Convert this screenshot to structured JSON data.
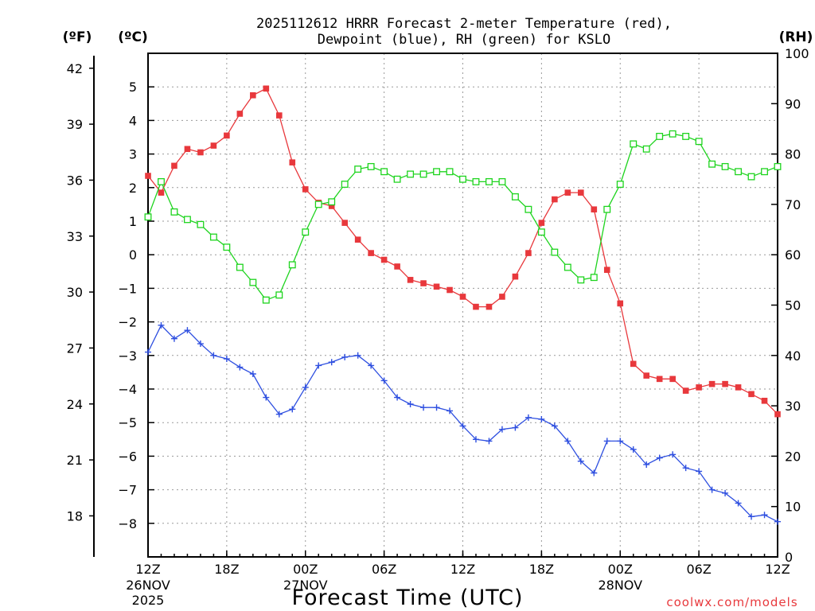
{
  "chart_data": {
    "type": "line",
    "title_line1": "2025112612 HRRR Forecast 2-meter Temperature (red),",
    "title_line2": "Dewpoint (blue), RH (green) for KSLO",
    "xlabel": "Forecast Time (UTC)",
    "unit_f": "(ºF)",
    "unit_c": "(ºC)",
    "unit_rh": "(RH)",
    "watermark": "coolwx.com/models",
    "colors": {
      "temperature": "#e8383c",
      "dewpoint": "#2e4fe0",
      "rh": "#1ed41e"
    },
    "x": {
      "min": 0,
      "max": 48,
      "hours": [
        0,
        1,
        2,
        3,
        4,
        5,
        6,
        7,
        8,
        9,
        10,
        11,
        12,
        13,
        14,
        15,
        16,
        17,
        18,
        19,
        20,
        21,
        22,
        23,
        24,
        25,
        26,
        27,
        28,
        29,
        30,
        31,
        32,
        33,
        34,
        35,
        36,
        37,
        38,
        39,
        40,
        41,
        42,
        43,
        44,
        45,
        46,
        47,
        48
      ]
    },
    "x_ticks": [
      {
        "hour": 0,
        "label": "12Z",
        "date": "26NOV",
        "year": "2025"
      },
      {
        "hour": 6,
        "label": "18Z",
        "date": "",
        "year": ""
      },
      {
        "hour": 12,
        "label": "00Z",
        "date": "27NOV",
        "year": ""
      },
      {
        "hour": 18,
        "label": "06Z",
        "date": "",
        "year": ""
      },
      {
        "hour": 24,
        "label": "12Z",
        "date": "",
        "year": ""
      },
      {
        "hour": 30,
        "label": "18Z",
        "date": "",
        "year": ""
      },
      {
        "hour": 36,
        "label": "00Z",
        "date": "28NOV",
        "year": ""
      },
      {
        "hour": 42,
        "label": "06Z",
        "date": "",
        "year": ""
      },
      {
        "hour": 48,
        "label": "12Z",
        "date": "",
        "year": ""
      }
    ],
    "y_celsius": {
      "min": -9,
      "max": 6,
      "ticks": [
        5,
        4,
        3,
        2,
        1,
        0,
        -1,
        -2,
        -3,
        -4,
        -5,
        -6,
        -7,
        -8
      ]
    },
    "y_fahrenheit": {
      "ticks": [
        42,
        39,
        36,
        33,
        30,
        27,
        24,
        21,
        18
      ]
    },
    "y_rh": {
      "min": 0,
      "max": 100,
      "ticks": [
        100,
        90,
        80,
        70,
        60,
        50,
        40,
        30,
        20,
        10,
        0
      ]
    },
    "series": [
      {
        "name": "Temperature",
        "unit": "C",
        "marker": "filled-square",
        "values": [
          2.35,
          1.85,
          2.65,
          3.15,
          3.05,
          3.25,
          3.55,
          4.2,
          4.75,
          4.95,
          4.15,
          2.75,
          1.95,
          1.55,
          1.45,
          0.95,
          0.45,
          0.05,
          -0.15,
          -0.35,
          -0.75,
          -0.85,
          -0.95,
          -1.05,
          -1.25,
          -1.55,
          -1.55,
          -1.25,
          -0.65,
          0.05,
          0.95,
          1.65,
          1.85,
          1.85,
          1.35,
          -0.45,
          -1.45,
          -3.25,
          -3.6,
          -3.7,
          -3.7,
          -4.05,
          -3.95,
          -3.85,
          -3.85,
          -3.95,
          -4.15,
          -4.35,
          -4.75
        ]
      },
      {
        "name": "Dewpoint",
        "unit": "C",
        "marker": "plus",
        "values": [
          -2.9,
          -2.1,
          -2.5,
          -2.25,
          -2.65,
          -3.0,
          -3.1,
          -3.35,
          -3.55,
          -4.25,
          -4.75,
          -4.6,
          -3.95,
          -3.3,
          -3.2,
          -3.05,
          -3.0,
          -3.3,
          -3.75,
          -4.25,
          -4.45,
          -4.55,
          -4.55,
          -4.65,
          -5.1,
          -5.5,
          -5.55,
          -5.2,
          -5.15,
          -4.85,
          -4.9,
          -5.1,
          -5.55,
          -6.15,
          -6.5,
          -5.55,
          -5.55,
          -5.8,
          -6.25,
          -6.05,
          -5.95,
          -6.35,
          -6.45,
          -7.0,
          -7.1,
          -7.4,
          -7.8,
          -7.75,
          -7.95
        ]
      },
      {
        "name": "RH",
        "unit": "%",
        "marker": "open-square",
        "values": [
          67.5,
          74.5,
          68.5,
          67.0,
          66.0,
          63.5,
          61.5,
          57.5,
          54.5,
          51.0,
          52.0,
          58.0,
          64.5,
          70.0,
          70.5,
          74.0,
          77.0,
          77.5,
          76.5,
          75.0,
          76.0,
          76.0,
          76.5,
          76.5,
          75.0,
          74.5,
          74.5,
          74.5,
          71.5,
          69.0,
          64.5,
          60.5,
          57.5,
          55.0,
          55.5,
          69.0,
          74.0,
          82.0,
          81.0,
          83.5,
          84.0,
          83.5,
          82.5,
          78.0,
          77.5,
          76.5,
          75.5,
          76.5,
          77.5
        ]
      }
    ]
  }
}
